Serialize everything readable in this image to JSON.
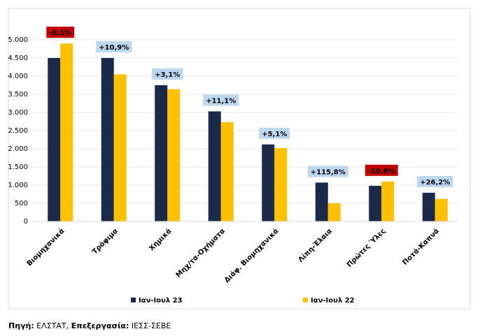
{
  "chart_data": {
    "type": "bar",
    "categories": [
      "Βιομηχανικά",
      "Τρόφιμα",
      "Χημικά",
      "Μηχ/τα-Οχήματα",
      "Διάφ. Βιομηχανικά",
      "Λίπη-Έλαια",
      "Πρώτες Ύλες",
      "Ποτά-Καπνά"
    ],
    "series": [
      {
        "name": "Ιαν-Ιουλ 23",
        "color": "#1b2a4a",
        "values": [
          4500,
          4500,
          3750,
          3030,
          2120,
          1070,
          980,
          790
        ]
      },
      {
        "name": "Ιαν-Ιουλ 22",
        "color": "#ffc000",
        "values": [
          4900,
          4050,
          3640,
          2730,
          2020,
          500,
          1100,
          620
        ]
      }
    ],
    "annotations": [
      "-8,1%",
      "+10,9%",
      "+3,1%",
      "+11,1%",
      "+5,1%",
      "+115,8%",
      "-10,6%",
      "+26,2%"
    ],
    "annotation_colors": [
      "#c00000",
      "#bdd7ee",
      "#bdd7ee",
      "#bdd7ee",
      "#bdd7ee",
      "#bdd7ee",
      "#c00000",
      "#bdd7ee"
    ],
    "ylim": [
      0,
      5000
    ],
    "yticks": [
      0,
      500,
      {
        "value": 1000,
        "label": "1.000"
      },
      {
        "value": 1500,
        "label": "1.500"
      },
      {
        "value": 2000,
        "label": "2.000"
      },
      {
        "value": 2500,
        "label": "2.500"
      },
      {
        "value": 3000,
        "label": "3.000"
      },
      {
        "value": 3500,
        "label": "3.500"
      },
      {
        "value": 4000,
        "label": "4.000"
      },
      {
        "value": 4500,
        "label": "4.500"
      },
      {
        "value": 5000,
        "label": "5.000"
      }
    ],
    "grid": true,
    "legend": "bottom"
  },
  "footnote": {
    "source_label": "Πηγή:",
    "source": "ΕΛΣΤΑΤ,",
    "processing_label": "Επεξεργασία:",
    "processing": "ΙΕΣΣ-ΣΕΒΕ"
  }
}
